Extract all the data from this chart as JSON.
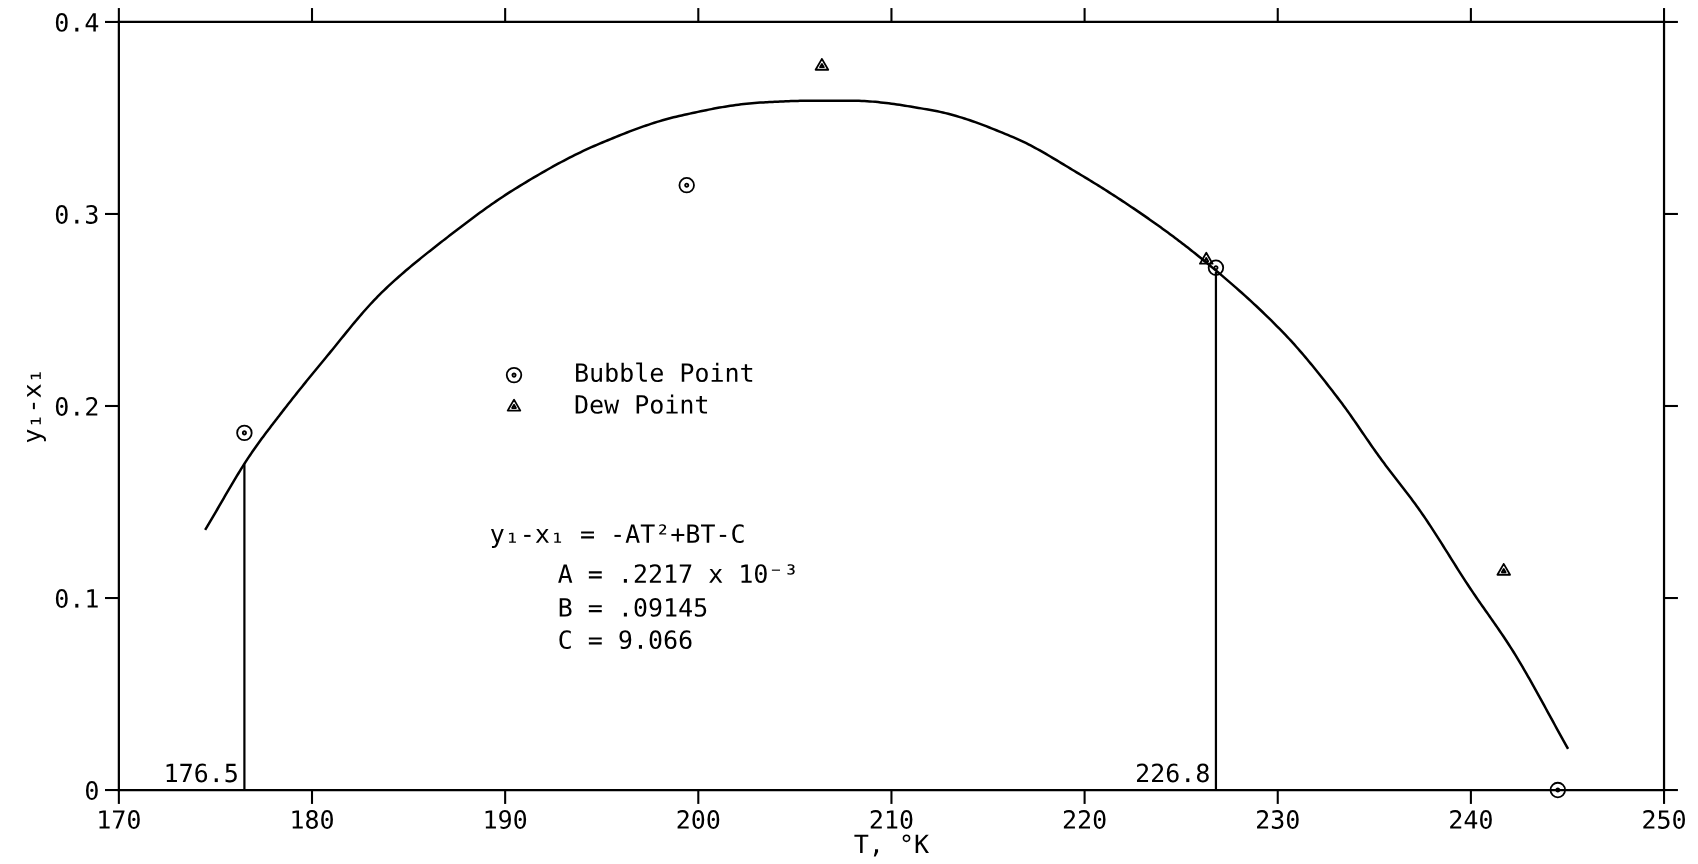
{
  "chart_data": {
    "type": "scatter",
    "xlabel": "T, °K",
    "ylabel": "y₁-x₁",
    "xlim": [
      170,
      250
    ],
    "ylim": [
      0,
      0.4
    ],
    "xticks": [
      170,
      180,
      190,
      200,
      210,
      220,
      230,
      240,
      250
    ],
    "yticks": [
      0,
      0.1,
      0.2,
      0.3,
      0.4
    ],
    "legend": "center left",
    "series": [
      {
        "name": "Bubble Point",
        "marker": "circle",
        "color": "#000000",
        "x": [
          176.5,
          199.4,
          226.8,
          244.5
        ],
        "values": [
          0.186,
          0.315,
          0.272,
          0.0
        ]
      },
      {
        "name": "Dew Point",
        "marker": "triangle",
        "color": "#000000",
        "x": [
          206.4,
          226.3,
          241.7
        ],
        "values": [
          0.377,
          0.276,
          0.114
        ]
      },
      {
        "type": "line",
        "marker": "none",
        "line_style": "solid",
        "color": "#000000",
        "x": [
          174.5,
          176.8,
          178.46,
          180.7,
          183.5,
          186.9,
          190.5,
          194.75,
          199.0,
          203.2,
          206.0,
          207.9,
          212.1,
          216.3,
          219.7,
          223.1,
          225.9,
          230.4,
          233.2,
          235.3,
          237.4,
          239.9,
          242.2,
          245.0
        ],
        "values": [
          0.136,
          0.1745,
          0.197,
          0.225,
          0.258,
          0.287,
          0.313,
          0.336,
          0.351,
          0.358,
          0.359,
          0.359,
          0.354,
          0.34,
          0.321,
          0.299,
          0.278,
          0.237,
          0.203,
          0.173,
          0.145,
          0.106,
          0.072,
          0.022
        ]
      }
    ],
    "ref_lines": [
      {
        "axis": "x",
        "value": 176.5,
        "label": "176.5",
        "color": "#000000"
      },
      {
        "axis": "x",
        "value": 226.8,
        "label": "226.8",
        "color": "#000000"
      }
    ],
    "annotations": [
      "y₁-x₁ = -AT²+BT-C",
      "A = .2217 x 10⁻³",
      "B = .09145",
      "C = 9.066"
    ]
  }
}
